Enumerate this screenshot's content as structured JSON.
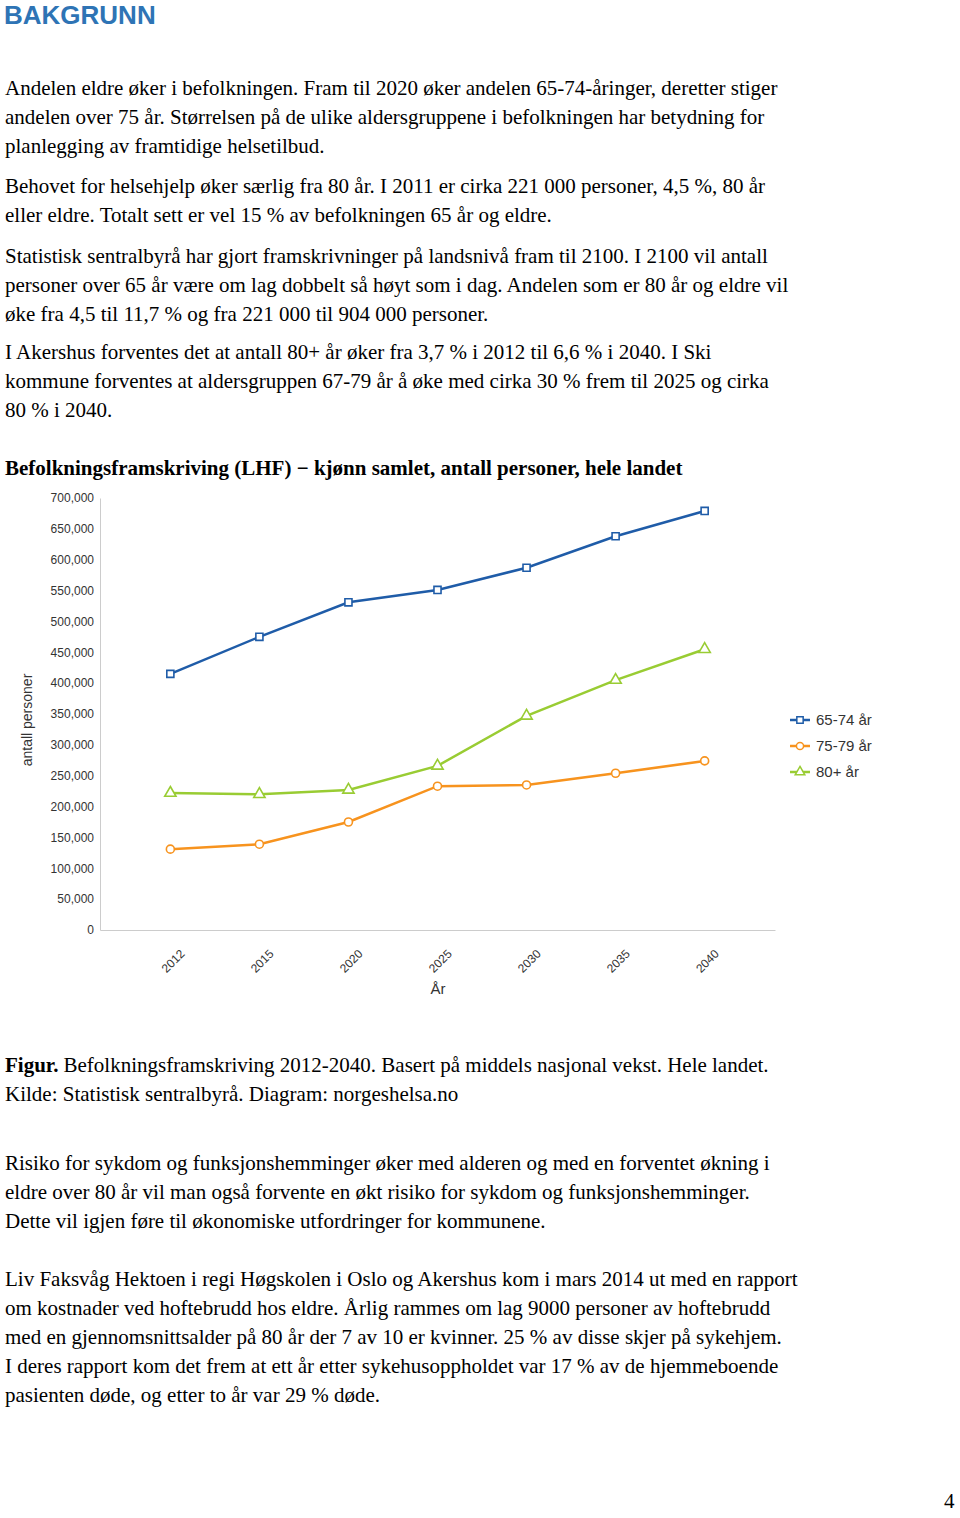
{
  "document": {
    "heading": "BAKGRUNN",
    "paragraphs_top": [
      {
        "lines": [
          "Andelen eldre øker i befolkningen. Fram til 2020 øker andelen 65-74-åringer, deretter stiger",
          "andelen over 75 år. Størrelsen på de ulike aldersgruppene i befolkningen har betydning for",
          "planlegging av framtidige helsetilbud."
        ]
      },
      {
        "lines": [
          "Behovet for helsehjelp øker særlig fra 80 år. I 2011 er cirka 221 000 personer, 4,5 %, 80 år",
          "eller eldre. Totalt sett er vel 15 % av befolkningen 65 år og eldre."
        ]
      },
      {
        "lines": [
          "Statistisk sentralbyrå har gjort framskrivninger på landsnivå fram til 2100. I 2100 vil antall",
          "personer over 65 år være om lag dobbelt så høyt som i dag. Andelen som er 80 år og eldre vil",
          "øke fra 4,5 til 11,7 % og fra 221 000 til 904 000 personer."
        ]
      },
      {
        "lines": [
          "I Akershus forventes det at antall 80+ år øker fra 3,7 % i 2012 til 6,6 % i 2040. I Ski",
          "kommune forventes at aldersgruppen 67-79 år å øke med cirka 30 % frem til 2025 og cirka",
          "80 % i 2040."
        ]
      }
    ],
    "caption": {
      "label": "Figur.",
      "lines": [
        "Befolkningsframskriving 2012-2040. Basert på middels nasjonal vekst. Hele landet.",
        "Kilde: Statistisk sentralbyrå. Diagram: norgeshelsa.no"
      ]
    },
    "paragraphs_bottom": [
      {
        "lines": [
          "Risiko for sykdom og funksjonshemminger øker med alderen og med en forventet økning i",
          "eldre over 80 år vil man også forvente en økt risiko for sykdom og funksjonshemminger.",
          "Dette vil igjen føre til økonomiske utfordringer for kommunene."
        ]
      },
      {
        "lines": [
          "Liv Faksvåg Hektoen i regi Høgskolen i Oslo og Akershus kom i mars 2014 ut med en rapport",
          "om kostnader ved hoftebrudd hos eldre. Årlig rammes om lag 9000 personer av hoftebrudd",
          "med en gjennomsnittsalder på 80 år der 7 av 10 er kvinner. 25 % av disse skjer på sykehjem.",
          "I deres rapport kom det frem at ett år etter sykehusoppholdet var 17 % av de hjemmeboende",
          "pasienten døde, og etter to år var 29 % døde."
        ]
      }
    ],
    "page_number": "4"
  },
  "chart_data": {
    "type": "line",
    "title": "Befolkningsframskriving (LHF) − kjønn samlet, antall personer, hele landet",
    "x_label": "År",
    "y_label": "antall personer",
    "categories": [
      "2012",
      "2015",
      "2020",
      "2025",
      "2030",
      "2035",
      "2040"
    ],
    "series": [
      {
        "name": "65-74 år",
        "color": "#1f5ca8",
        "marker": "square",
        "values": [
          415000,
          475000,
          531000,
          551000,
          587000,
          638000,
          679000
        ]
      },
      {
        "name": "75-79 år",
        "color": "#f7931e",
        "marker": "circle",
        "values": [
          131000,
          139000,
          175000,
          233000,
          235000,
          254000,
          274000
        ]
      },
      {
        "name": "80+ år",
        "color": "#99cc33",
        "marker": "triangle",
        "values": [
          222000,
          220000,
          227000,
          266000,
          347000,
          405000,
          455000
        ]
      }
    ],
    "ylim": [
      0,
      700000
    ],
    "yticks": [
      0,
      {
        "value": 50000,
        "label": "50,000"
      },
      {
        "value": 100000,
        "label": "100,000"
      },
      {
        "value": 150000,
        "label": "150,000"
      },
      {
        "value": 200000,
        "label": "200,000"
      },
      {
        "value": 250000,
        "label": "250,000"
      },
      {
        "value": 300000,
        "label": "300,000"
      },
      {
        "value": 350000,
        "label": "350,000"
      },
      {
        "value": 400000,
        "label": "400,000"
      },
      {
        "value": 450000,
        "label": "450,000"
      },
      {
        "value": 500000,
        "label": "500,000"
      },
      {
        "value": 550000,
        "label": "550,000"
      },
      {
        "value": 600000,
        "label": "600,000"
      },
      {
        "value": 650000,
        "label": "650,000"
      },
      {
        "value": 700000,
        "label": "700,000"
      }
    ],
    "grid": false,
    "legend": "right"
  }
}
